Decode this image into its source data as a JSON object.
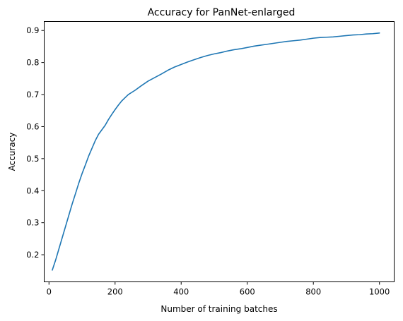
{
  "chart_data": {
    "type": "line",
    "title": "Accuracy for PanNet-enlarged",
    "xlabel": "Number of training batches",
    "ylabel": "Accuracy",
    "xlim": [
      -14.5,
      1044.5
    ],
    "ylim": [
      0.1154,
      0.928
    ],
    "xticks": [
      0,
      200,
      400,
      600,
      800,
      1000
    ],
    "xtick_labels": [
      "0",
      "200",
      "400",
      "600",
      "800",
      "1000"
    ],
    "yticks": [
      0.2,
      0.3,
      0.4,
      0.5,
      0.6,
      0.7,
      0.8,
      0.9
    ],
    "ytick_labels": [
      "0.2",
      "0.3",
      "0.4",
      "0.5",
      "0.6",
      "0.7",
      "0.8",
      "0.9"
    ],
    "grid": false,
    "legend": "none",
    "series": [
      {
        "color": "#1f77b4",
        "x": [
          10,
          20,
          30,
          40,
          50,
          60,
          70,
          80,
          90,
          100,
          110,
          120,
          130,
          140,
          150,
          160,
          170,
          180,
          190,
          200,
          210,
          220,
          230,
          240,
          260,
          280,
          300,
          320,
          340,
          360,
          380,
          400,
          420,
          440,
          460,
          480,
          500,
          520,
          540,
          560,
          580,
          600,
          620,
          640,
          660,
          680,
          700,
          720,
          740,
          760,
          780,
          800,
          820,
          840,
          860,
          880,
          900,
          920,
          940,
          960,
          980,
          1000
        ],
        "y": [
          0.152,
          0.183,
          0.218,
          0.253,
          0.288,
          0.323,
          0.358,
          0.39,
          0.423,
          0.453,
          0.48,
          0.508,
          0.532,
          0.556,
          0.576,
          0.59,
          0.604,
          0.622,
          0.638,
          0.653,
          0.667,
          0.68,
          0.69,
          0.7,
          0.713,
          0.728,
          0.742,
          0.753,
          0.764,
          0.776,
          0.786,
          0.794,
          0.802,
          0.809,
          0.816,
          0.822,
          0.827,
          0.831,
          0.836,
          0.84,
          0.843,
          0.847,
          0.851,
          0.854,
          0.857,
          0.86,
          0.863,
          0.866,
          0.868,
          0.87,
          0.873,
          0.876,
          0.878,
          0.879,
          0.88,
          0.882,
          0.884,
          0.886,
          0.887,
          0.889,
          0.89,
          0.892
        ]
      }
    ]
  }
}
